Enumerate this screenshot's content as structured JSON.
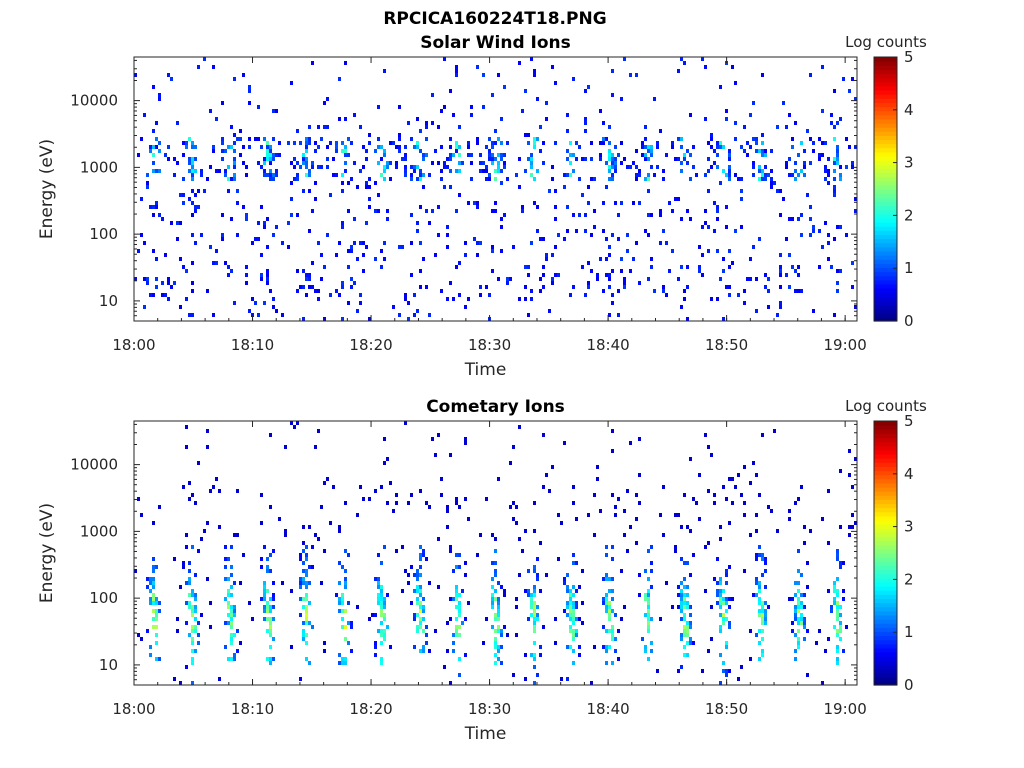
{
  "figure_title": "RPCICA160224T18.PNG",
  "chart_data": [
    {
      "type": "heatmap",
      "title": "Solar Wind Ions",
      "xlabel": "Time",
      "ylabel": "Energy (eV)",
      "x_tick_labels": [
        "18:00",
        "18:10",
        "18:20",
        "18:30",
        "18:40",
        "18:50",
        "19:00"
      ],
      "x_range_minutes": [
        0,
        61
      ],
      "y_tick_labels": [
        "10",
        "100",
        "1000",
        "10000"
      ],
      "y_range": [
        5,
        45000
      ],
      "y_scale": "log",
      "colorbar": {
        "label": "Log counts",
        "ticks": [
          "0",
          "1",
          "2",
          "3",
          "4",
          "5"
        ],
        "range": [
          0,
          5
        ],
        "colormap": "jet"
      },
      "grid": false,
      "features": {
        "stripe_period_min": 3.2,
        "main_band_energy_eV": [
          700,
          3000
        ],
        "main_band_peak_log_counts": 2.0,
        "background_log_counts": 0.5
      }
    },
    {
      "type": "heatmap",
      "title": "Cometary Ions",
      "xlabel": "Time",
      "ylabel": "Energy (eV)",
      "x_tick_labels": [
        "18:00",
        "18:10",
        "18:20",
        "18:30",
        "18:40",
        "18:50",
        "19:00"
      ],
      "x_range_minutes": [
        0,
        61
      ],
      "y_tick_labels": [
        "10",
        "100",
        "1000",
        "10000"
      ],
      "y_range": [
        5,
        45000
      ],
      "y_scale": "log",
      "colorbar": {
        "label": "Log counts",
        "ticks": [
          "0",
          "1",
          "2",
          "3",
          "4",
          "5"
        ],
        "range": [
          0,
          5
        ],
        "colormap": "jet"
      },
      "grid": false,
      "features": {
        "stripe_period_min": 3.2,
        "main_band_energy_eV": [
          10,
          500
        ],
        "main_band_peak_log_counts": 2.8,
        "background_log_counts": 0.4
      }
    }
  ]
}
